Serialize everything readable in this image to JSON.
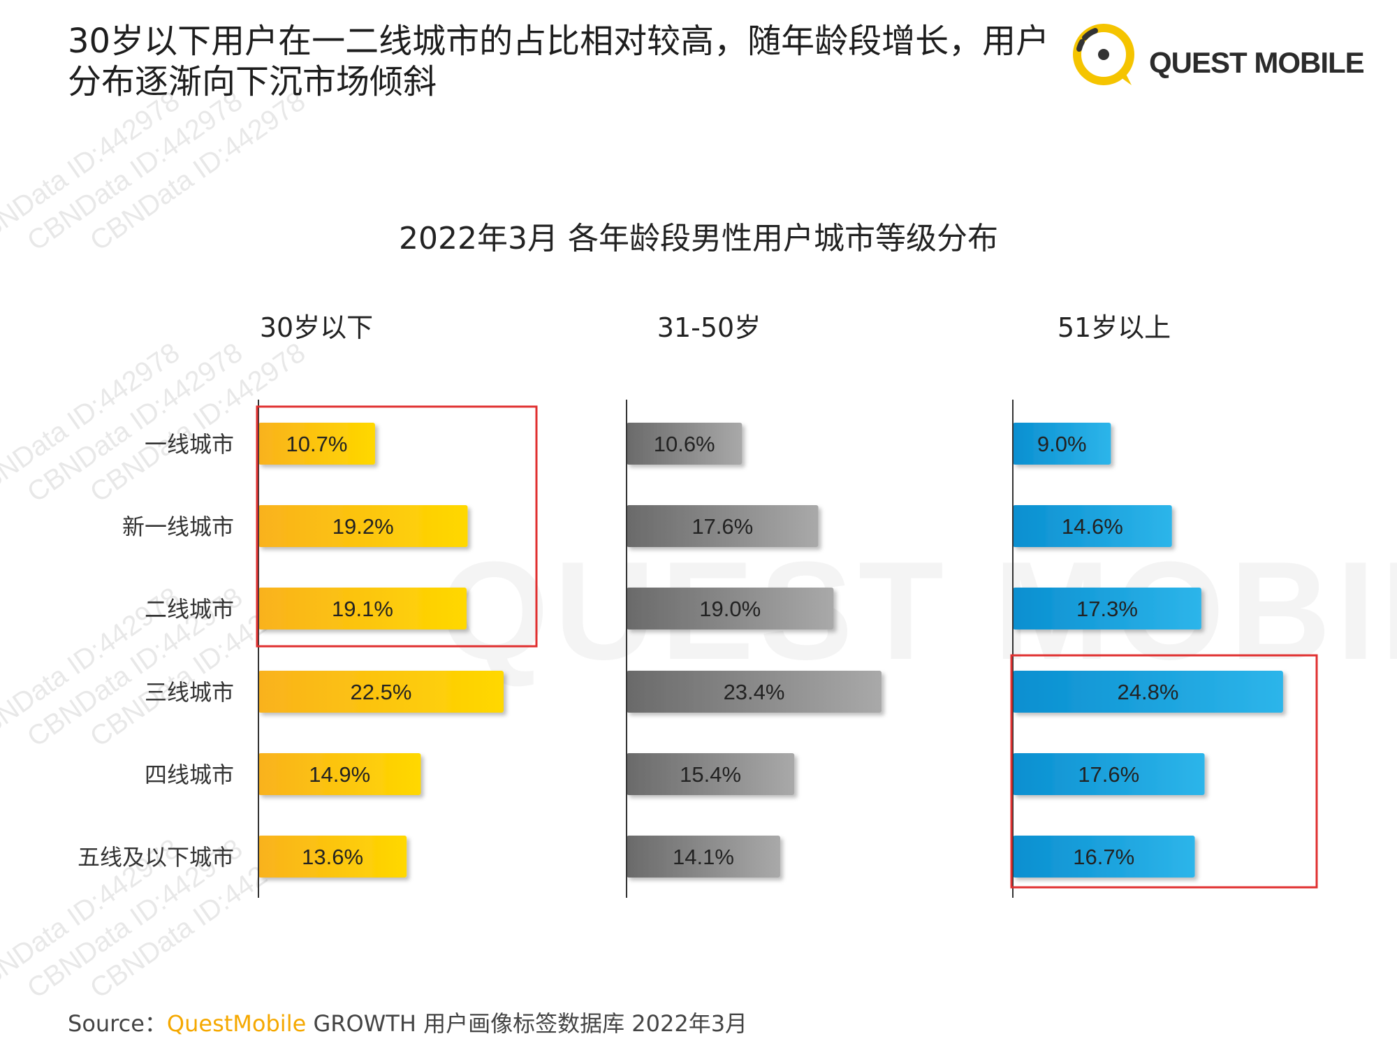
{
  "page": {
    "headline": "30岁以下用户在一二线城市的占比相对较高，随年龄段增长，用户分布逐渐向下沉市场倾斜",
    "logo_text": "QUEST MOBILE",
    "watermark_text": "CBNData ID:442978",
    "big_watermark_text": "QUEST MOBILE",
    "source_label": "Source：",
    "source_brand": "QuestMobile",
    "source_rest": " GROWTH 用户画像标签数据库 2022年3月"
  },
  "chart_data": {
    "type": "bar",
    "orientation": "horizontal",
    "title": "2022年3月 各年龄段男性用户城市等级分布",
    "categories": [
      "一线城市",
      "新一线城市",
      "二线城市",
      "三线城市",
      "四线城市",
      "五线及以下城市"
    ],
    "panels": [
      {
        "name": "30岁以下",
        "values": [
          10.7,
          19.2,
          19.1,
          22.5,
          14.9,
          13.6
        ],
        "labels": [
          "10.7%",
          "19.2%",
          "19.1%",
          "22.5%",
          "14.9%",
          "13.6%"
        ],
        "color_start": "#f9b21d",
        "color_end": "#ffd800",
        "highlight": [
          "一线城市",
          "新一线城市",
          "二线城市"
        ]
      },
      {
        "name": "31-50岁",
        "values": [
          10.6,
          17.6,
          19.0,
          23.4,
          15.4,
          14.1
        ],
        "labels": [
          "10.6%",
          "17.6%",
          "19.0%",
          "23.4%",
          "15.4%",
          "14.1%"
        ],
        "color_start": "#6a6a6a",
        "color_end": "#a9a9a9",
        "highlight": []
      },
      {
        "name": "51岁以上",
        "values": [
          9.0,
          14.6,
          17.3,
          24.8,
          17.6,
          16.7
        ],
        "labels": [
          "9.0%",
          "14.6%",
          "17.3%",
          "24.8%",
          "17.6%",
          "16.7%"
        ],
        "color_start": "#0a8fd0",
        "color_end": "#2db5ea",
        "highlight": [
          "三线城市",
          "四线城市",
          "五线及以下城市"
        ]
      }
    ],
    "highlight_color": "#e03030",
    "label_color": "#222222",
    "axis_color": "#333333",
    "grid": false,
    "legend": "none"
  }
}
